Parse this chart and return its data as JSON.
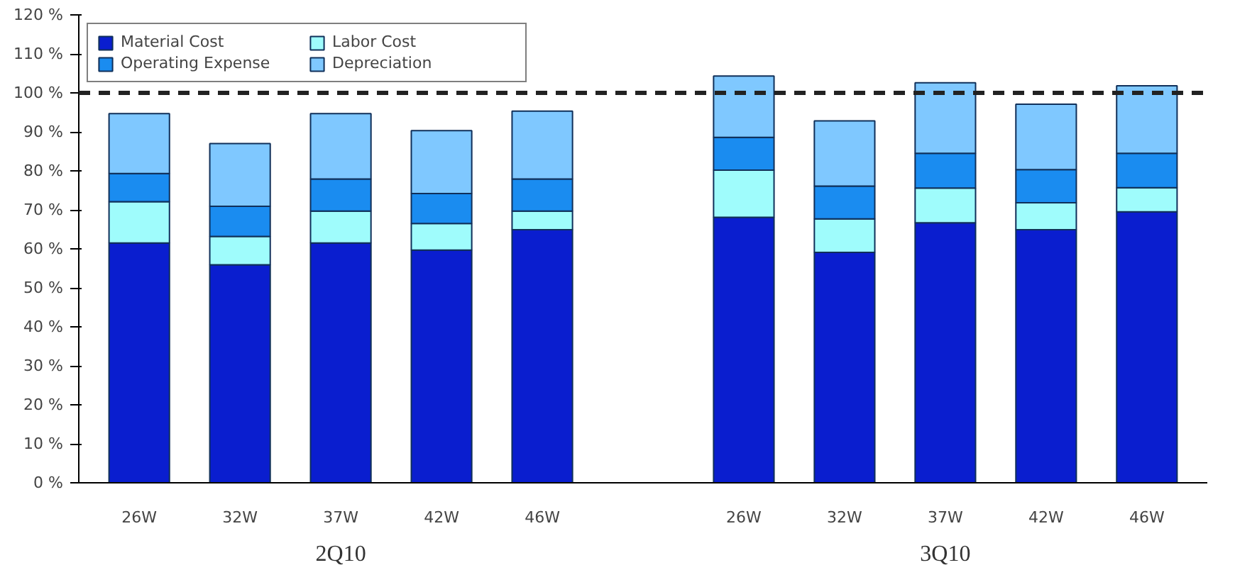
{
  "chart_data": {
    "type": "bar",
    "stacked": true,
    "categories": [
      "26W",
      "32W",
      "37W",
      "42W",
      "46W",
      null,
      "26W",
      "32W",
      "37W",
      "42W",
      "46W"
    ],
    "series": [
      {
        "name": "Material Cost",
        "color": "#0a1ecf",
        "values": [
          61.5,
          55.9,
          61.5,
          59.7,
          64.9,
          null,
          68.1,
          59.1,
          66.7,
          64.9,
          69.5
        ]
      },
      {
        "name": "Labor Cost",
        "color": "#9ffcfc",
        "values": [
          10.6,
          7.3,
          8.2,
          6.8,
          4.8,
          null,
          12.1,
          8.6,
          8.9,
          6.9,
          6.2
        ]
      },
      {
        "name": "Operating Expense",
        "color": "#1a8cf0",
        "values": [
          7.2,
          7.7,
          8.2,
          7.7,
          8.2,
          null,
          8.4,
          8.4,
          8.9,
          8.5,
          8.8
        ]
      },
      {
        "name": "Depreciation",
        "color": "#7fc8ff",
        "values": [
          15.4,
          16.1,
          16.8,
          16.1,
          17.4,
          null,
          15.7,
          16.7,
          18.1,
          16.8,
          17.3
        ]
      }
    ],
    "ylim": [
      0,
      120
    ],
    "yticks": [
      {
        "value": 0,
        "label": "0 %"
      },
      {
        "value": 10,
        "label": "10 %"
      },
      {
        "value": 20,
        "label": "20 %"
      },
      {
        "value": 30,
        "label": "30 %"
      },
      {
        "value": 40,
        "label": "40 %"
      },
      {
        "value": 50,
        "label": "50 %"
      },
      {
        "value": 60,
        "label": "60 %"
      },
      {
        "value": 70,
        "label": "70 %"
      },
      {
        "value": 80,
        "label": "80 %"
      },
      {
        "value": 90,
        "label": "90 %"
      },
      {
        "value": 100,
        "label": "100 %"
      },
      {
        "value": 110,
        "label": "110 %"
      },
      {
        "value": 120,
        "label": "120 %"
      }
    ],
    "ref_lines": [
      {
        "axis": "y",
        "value": 100,
        "color": "#222222",
        "line_style": "dashed"
      }
    ],
    "annotations": [
      "2Q10",
      "3Q10"
    ],
    "legend": "top left",
    "grid": false
  }
}
